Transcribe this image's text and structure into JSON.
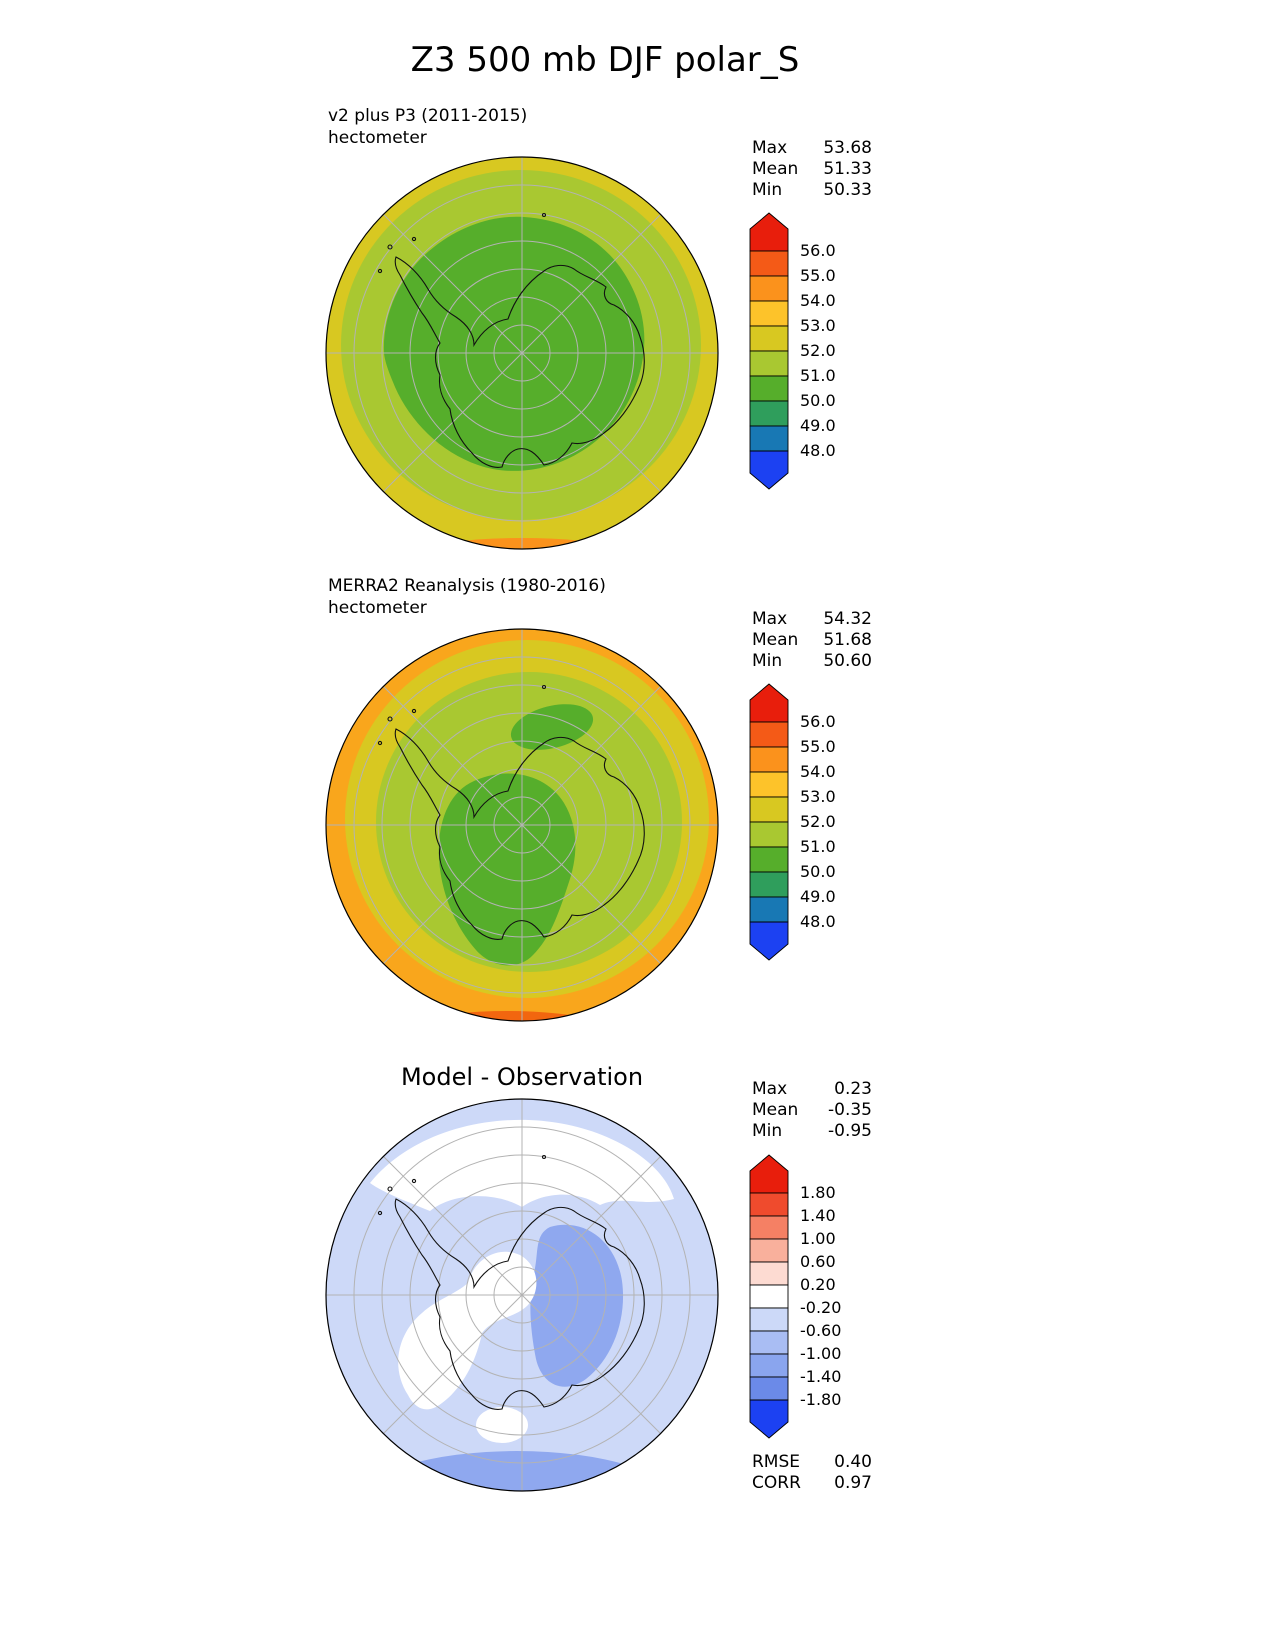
{
  "title": "Z3 500 mb DJF polar_S",
  "panels": [
    {
      "label_line1": "v2 plus P3 (2011-2015)",
      "label_line2": "hectometer",
      "stats": [
        {
          "name": "Max",
          "value": "53.68"
        },
        {
          "name": "Mean",
          "value": "51.33"
        },
        {
          "name": "Min",
          "value": "50.33"
        }
      ],
      "colorbar": {
        "seg_h": 25,
        "labels": [
          "56.0",
          "55.0",
          "54.0",
          "53.0",
          "52.0",
          "51.0",
          "50.0",
          "49.0",
          "48.0"
        ],
        "colors": [
          "#e81e0c",
          "#f45a17",
          "#fb921c",
          "#fdc32a",
          "#d8c821",
          "#a9c831",
          "#56ae2b",
          "#2f9e5c",
          "#1878b4",
          "#1c41f2"
        ]
      }
    },
    {
      "label_line1": "MERRA2 Reanalysis (1980-2016)",
      "label_line2": "hectometer",
      "stats": [
        {
          "name": "Max",
          "value": "54.32"
        },
        {
          "name": "Mean",
          "value": "51.68"
        },
        {
          "name": "Min",
          "value": "50.60"
        }
      ],
      "colorbar": {
        "seg_h": 25,
        "labels": [
          "56.0",
          "55.0",
          "54.0",
          "53.0",
          "52.0",
          "51.0",
          "50.0",
          "49.0",
          "48.0"
        ],
        "colors": [
          "#e81e0c",
          "#f45a17",
          "#fb921c",
          "#fdc32a",
          "#d8c821",
          "#a9c831",
          "#56ae2b",
          "#2f9e5c",
          "#1878b4",
          "#1c41f2"
        ]
      }
    },
    {
      "title": "Model - Observation",
      "stats": [
        {
          "name": "Max",
          "value": "0.23"
        },
        {
          "name": "Mean",
          "value": "-0.35"
        },
        {
          "name": "Min",
          "value": "-0.95"
        }
      ],
      "colorbar": {
        "seg_h": 23,
        "labels": [
          "1.80",
          "1.40",
          "1.00",
          "0.60",
          "0.20",
          "-0.20",
          "-0.60",
          "-1.00",
          "-1.40",
          "-1.80"
        ],
        "colors": [
          "#e81e0c",
          "#ef4b2d",
          "#f58064",
          "#f9b09c",
          "#fddbd2",
          "#ffffff",
          "#ccd9f8",
          "#a9bdf3",
          "#8aa5ee",
          "#6b8ae8",
          "#1c41f2"
        ]
      }
    }
  ],
  "footer_stats": [
    {
      "name": "RMSE",
      "value": "0.40"
    },
    {
      "name": "CORR",
      "value": "0.97"
    }
  ],
  "chart_data": {
    "type": "heatmap",
    "title": "Z3 500 mb DJF polar_S",
    "variable": "Z3 500 mb",
    "season": "DJF",
    "region": "polar_S (Southern Hemisphere polar stereographic view of Antarctica)",
    "units": "hectometer",
    "legend_position": "right",
    "panels": [
      {
        "name": "v2 plus P3 (2011-2015)",
        "units": "hectometer",
        "max": 53.68,
        "mean": 51.33,
        "min": 50.33,
        "contour_levels": [
          48.0,
          49.0,
          50.0,
          51.0,
          52.0,
          53.0,
          54.0,
          55.0,
          56.0
        ],
        "description": "Green interior (50-51) surrounded by yellow-green (51-52), mustard rim (52-53), thin orange band (53-54) at the lower map edge"
      },
      {
        "name": "MERRA2 Reanalysis (1980-2016)",
        "units": "hectometer",
        "max": 54.32,
        "mean": 51.68,
        "min": 50.6,
        "contour_levels": [
          48.0,
          49.0,
          50.0,
          51.0,
          52.0,
          53.0,
          54.0,
          55.0,
          56.0
        ],
        "description": "Green patches (50-51) near the pole, broad yellow-green (51-52), mustard ring (52-53), orange rim (53-54) strongest at lower-left edge"
      },
      {
        "name": "Model - Observation",
        "max": 0.23,
        "mean": -0.35,
        "min": -0.95,
        "contour_levels": [
          -1.8,
          -1.4,
          -1.0,
          -0.6,
          -0.2,
          0.2,
          0.6,
          1.0,
          1.4,
          1.8
        ],
        "rmse": 0.4,
        "corr": 0.97,
        "description": "Mostly light blue (-0.6 to -0.2) with white (-0.2 to 0.2) patches at top and near pole; medium blue (-1.0 to -0.6) lobe east of the pole and along the bottom rim"
      }
    ]
  }
}
